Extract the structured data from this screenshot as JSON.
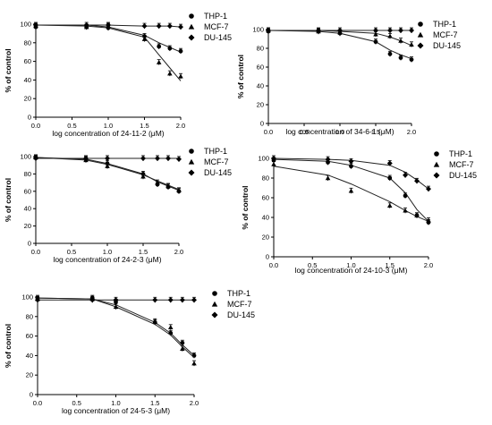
{
  "chart_data": [
    {
      "type": "scatter",
      "xlabel": "log concentration of 24-11-2 (μM)",
      "ylabel": "% of control",
      "xlim": [
        0,
        2.0
      ],
      "ylim": [
        0,
        100
      ],
      "xticks": [
        "0.0",
        "0.5",
        "1.0",
        "1.5",
        "2.0"
      ],
      "yticks": [
        "0",
        "20",
        "40",
        "60",
        "80",
        "100"
      ],
      "grid": false,
      "legend": "top-right",
      "series": [
        {
          "name": "THP-1",
          "marker": "circle",
          "x": [
            0,
            0.7,
            1.0,
            1.5,
            1.7,
            1.85,
            2.0
          ],
          "y": [
            97,
            97,
            96,
            87,
            76,
            74,
            71
          ],
          "curve": [
            99,
            99,
            97,
            88,
            80,
            75,
            70
          ]
        },
        {
          "name": "MCF-7",
          "marker": "triangle",
          "x": [
            0,
            0.7,
            1.0,
            1.5,
            1.7,
            1.85,
            2.0
          ],
          "y": [
            98,
            97,
            98,
            84,
            59,
            47,
            44
          ],
          "curve": [
            99,
            98,
            96,
            86,
            67,
            53,
            39
          ]
        },
        {
          "name": "DU-145",
          "marker": "diamond",
          "x": [
            0,
            0.7,
            1.0,
            1.5,
            1.7,
            1.85,
            2.0
          ],
          "y": [
            99,
            99,
            99,
            98,
            98,
            98,
            97
          ],
          "curve": [
            99,
            99,
            99,
            98,
            98,
            98,
            97
          ]
        }
      ]
    },
    {
      "type": "scatter",
      "xlabel": "log concentration of 34-6-1 (μM)",
      "ylabel": "% of control",
      "xlim": [
        0,
        2.0
      ],
      "ylim": [
        0,
        100
      ],
      "xticks": [
        "0.0",
        "0.5",
        "1.0",
        "1.5",
        "2.0"
      ],
      "yticks": [
        "0",
        "20",
        "40",
        "60",
        "80",
        "100"
      ],
      "grid": false,
      "legend": "top-right",
      "series": [
        {
          "name": "THP-1",
          "marker": "circle",
          "x": [
            0,
            0.7,
            1.0,
            1.5,
            1.7,
            1.85,
            2.0
          ],
          "y": [
            98,
            98,
            96,
            87,
            74,
            70,
            68
          ],
          "curve": [
            99,
            98,
            96,
            87,
            78,
            73,
            69
          ]
        },
        {
          "name": "MCF-7",
          "marker": "triangle",
          "x": [
            0,
            0.7,
            1.0,
            1.5,
            1.7,
            1.85,
            2.0
          ],
          "y": [
            99,
            98,
            97,
            95,
            93,
            88,
            84
          ],
          "curve": [
            99,
            99,
            98,
            96,
            92,
            88,
            83
          ]
        },
        {
          "name": "DU-145",
          "marker": "diamond",
          "x": [
            0,
            0.7,
            1.0,
            1.5,
            1.7,
            1.85,
            2.0
          ],
          "y": [
            99,
            99,
            99,
            99,
            99,
            99,
            99
          ],
          "curve": [
            99,
            99,
            99,
            99,
            99,
            99,
            99
          ]
        }
      ]
    },
    {
      "type": "scatter",
      "xlabel": "log concentration of 24-2-3 (μM)",
      "ylabel": "% of control",
      "xlim": [
        0,
        2.0
      ],
      "ylim": [
        0,
        100
      ],
      "xticks": [
        "0.0",
        "0.5",
        "1.0",
        "1.5",
        "2.0"
      ],
      "yticks": [
        "0",
        "20",
        "40",
        "60",
        "80",
        "100"
      ],
      "grid": false,
      "legend": "top-right",
      "series": [
        {
          "name": "THP-1",
          "marker": "circle",
          "x": [
            0,
            0.7,
            1.0,
            1.5,
            1.7,
            1.85,
            2.0
          ],
          "y": [
            99,
            97,
            92,
            80,
            68,
            65,
            60
          ],
          "curve": [
            99,
            97,
            92,
            80,
            71,
            66,
            61
          ]
        },
        {
          "name": "MCF-7",
          "marker": "triangle",
          "x": [
            0,
            0.7,
            1.0,
            1.5,
            1.7,
            1.85,
            2.0
          ],
          "y": [
            99,
            96,
            89,
            77,
            70,
            66,
            61
          ],
          "curve": [
            99,
            96,
            91,
            79,
            72,
            67,
            62
          ]
        },
        {
          "name": "DU-145",
          "marker": "diamond",
          "x": [
            0,
            0.7,
            1.0,
            1.5,
            1.7,
            1.85,
            2.0
          ],
          "y": [
            98,
            98,
            98,
            98,
            98,
            98,
            97
          ],
          "curve": [
            98,
            98,
            98,
            98,
            98,
            98,
            98
          ]
        }
      ]
    },
    {
      "type": "scatter",
      "xlabel": "log concentration of 24-10-3 (μM)",
      "ylabel": "% of control",
      "xlim": [
        0,
        2.0
      ],
      "ylim": [
        0,
        100
      ],
      "xticks": [
        "0.0",
        "0.5",
        "1.0",
        "1.5",
        "2.0"
      ],
      "yticks": [
        "0",
        "20",
        "40",
        "60",
        "80",
        "100"
      ],
      "grid": false,
      "legend": "top-right",
      "series": [
        {
          "name": "THP-1",
          "marker": "circle",
          "x": [
            0,
            0.7,
            1.0,
            1.5,
            1.7,
            1.85,
            2.0
          ],
          "y": [
            98,
            96,
            92,
            80,
            62,
            42,
            35
          ],
          "curve": [
            99,
            97,
            93,
            80,
            65,
            48,
            36
          ]
        },
        {
          "name": "MCF-7",
          "marker": "triangle",
          "x": [
            0,
            0.7,
            1.0,
            1.5,
            1.7,
            1.85,
            2.0
          ],
          "y": [
            94,
            80,
            67,
            52,
            47,
            42,
            37
          ],
          "curve": [
            92,
            83,
            74,
            56,
            47,
            41,
            36
          ]
        },
        {
          "name": "DU-145",
          "marker": "diamond",
          "x": [
            0,
            0.7,
            1.0,
            1.5,
            1.7,
            1.85,
            2.0
          ],
          "y": [
            100,
            99,
            97,
            95,
            83,
            77,
            69
          ],
          "curve": [
            100,
            99,
            98,
            93,
            86,
            78,
            69
          ]
        }
      ]
    },
    {
      "type": "scatter",
      "xlabel": "log concentration of 24-5-3 (μM)",
      "ylabel": "% of control",
      "xlim": [
        0,
        2.0
      ],
      "ylim": [
        0,
        100
      ],
      "xticks": [
        "0.0",
        "0.5",
        "1.0",
        "1.5",
        "2.0"
      ],
      "yticks": [
        "0",
        "20",
        "40",
        "60",
        "80",
        "100"
      ],
      "grid": false,
      "legend": "top-right",
      "series": [
        {
          "name": "THP-1",
          "marker": "circle",
          "x": [
            0,
            0.7,
            1.0,
            1.5,
            1.7,
            1.85,
            2.0
          ],
          "y": [
            99,
            99,
            95,
            74,
            63,
            53,
            40
          ],
          "curve": [
            99,
            98,
            92,
            74,
            63,
            51,
            40
          ]
        },
        {
          "name": "MCF-7",
          "marker": "triangle",
          "x": [
            0,
            0.7,
            1.0,
            1.5,
            1.7,
            1.85,
            2.0
          ],
          "y": [
            98,
            98,
            90,
            75,
            69,
            47,
            32
          ],
          "curve": [
            99,
            98,
            90,
            72,
            61,
            49,
            38
          ]
        },
        {
          "name": "DU-145",
          "marker": "diamond",
          "x": [
            0,
            0.7,
            1.0,
            1.5,
            1.7,
            1.85,
            2.0
          ],
          "y": [
            97,
            97,
            97,
            97,
            97,
            97,
            97
          ],
          "curve": [
            97,
            97,
            97,
            97,
            97,
            97,
            97
          ]
        }
      ]
    }
  ]
}
